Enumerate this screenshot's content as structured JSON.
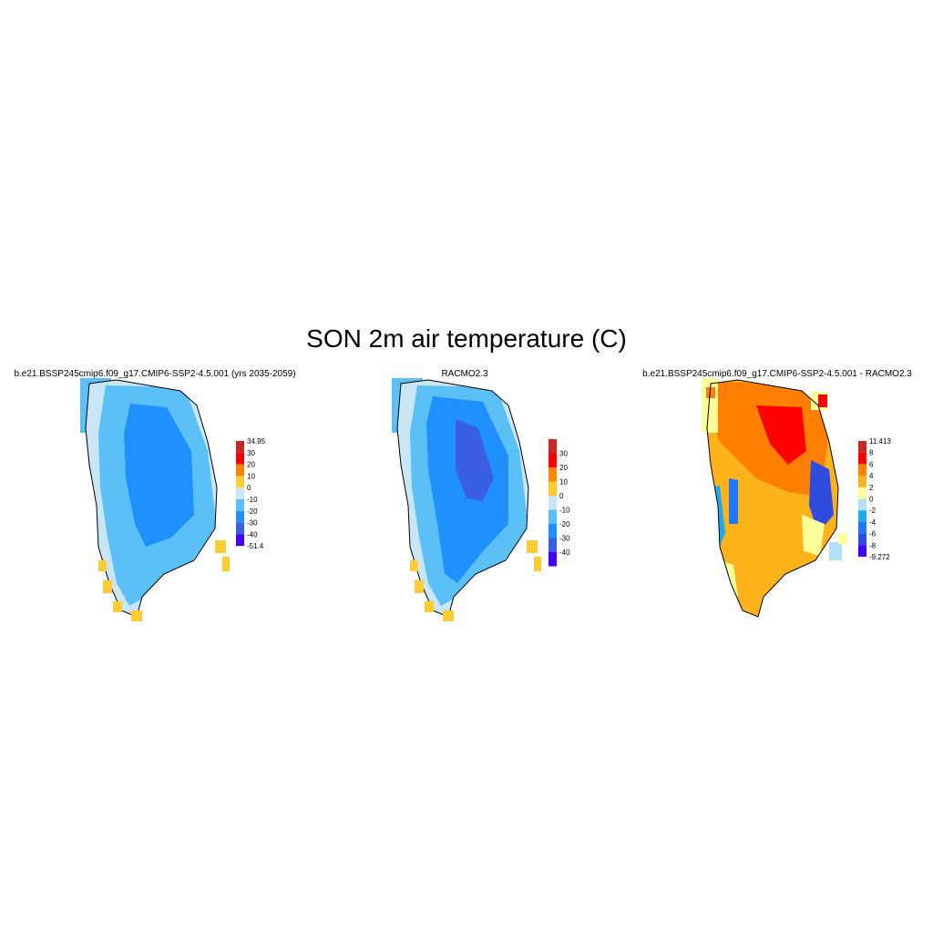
{
  "title": "SON 2m air temperature (C)",
  "panels": [
    {
      "title": "b.e21.BSSP245cmip6.f09_g17.CMIP6-SSP2-4.5.001 (yrs 2035-2059)",
      "colorbar": {
        "labels": [
          "34.95",
          "30",
          "20",
          "10",
          "0",
          "-10",
          "-20",
          "-30",
          "-40",
          "-51.4"
        ],
        "colors": [
          "#c62828",
          "#ff0000",
          "#ff7f00",
          "#ffcc33",
          "#c8e6f5",
          "#5bc0f5",
          "#1e90ff",
          "#3a5fe0",
          "#4000ff"
        ]
      }
    },
    {
      "title": "RACMO2.3",
      "colorbar": {
        "labels": [
          "30",
          "20",
          "10",
          "0",
          "-10",
          "-20",
          "-30",
          "-40"
        ],
        "colors": [
          "#c62828",
          "#ff0000",
          "#ff8c00",
          "#ffcc33",
          "#c8e6f5",
          "#5bc0f5",
          "#1e90ff",
          "#3a5fe0",
          "#4000ff"
        ]
      }
    },
    {
      "title": "b.e21.BSSP245cmip6.f09_g17.CMIP6-SSP2-4.5.001 - RACMO2.3",
      "colorbar": {
        "labels": [
          "11.413",
          "8",
          "6",
          "4",
          "2",
          "0",
          "-2",
          "-4",
          "-6",
          "-8",
          "-9.272"
        ],
        "colors": [
          "#c62828",
          "#ff0000",
          "#ff7f00",
          "#ffb31a",
          "#ffff99",
          "#b3e0f5",
          "#1eaaee",
          "#1e78ff",
          "#2e4de0",
          "#4000ff"
        ]
      }
    }
  ]
}
